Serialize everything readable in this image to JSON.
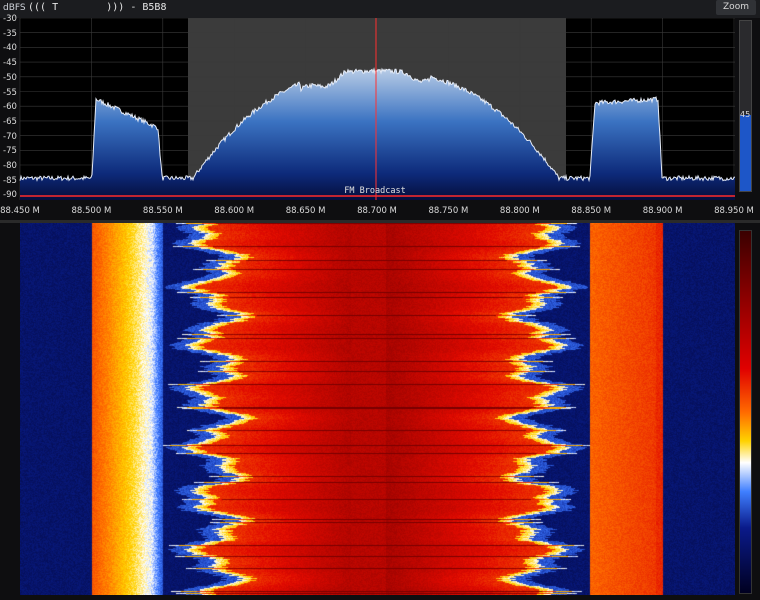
{
  "header": {
    "rds_label": "dBFS",
    "rds_text": "((( T        ))) - B5B8",
    "zoom_label": "Zoom"
  },
  "spectrum": {
    "y_ticks": [
      "-30",
      "-35",
      "-40",
      "-45",
      "-50",
      "-55",
      "-60",
      "-65",
      "-70",
      "-75",
      "-80",
      "-85",
      "-90"
    ],
    "x_ticks": [
      "88.450 M",
      "88.500 M",
      "88.550 M",
      "88.600 M",
      "88.650 M",
      "88.700 M",
      "88.750 M",
      "88.800 M",
      "88.850 M",
      "88.900 M",
      "88.950 M"
    ],
    "band_label": "FM Broadcast",
    "gain_value": "45",
    "gain_fraction": 0.45,
    "colors": {
      "trace": "#dfe6f5",
      "fill_top": "#a9c4e6",
      "fill_bottom": "#0a1040",
      "cursor": "#ff3030",
      "band_line": "#ff2a2a"
    }
  }
}
